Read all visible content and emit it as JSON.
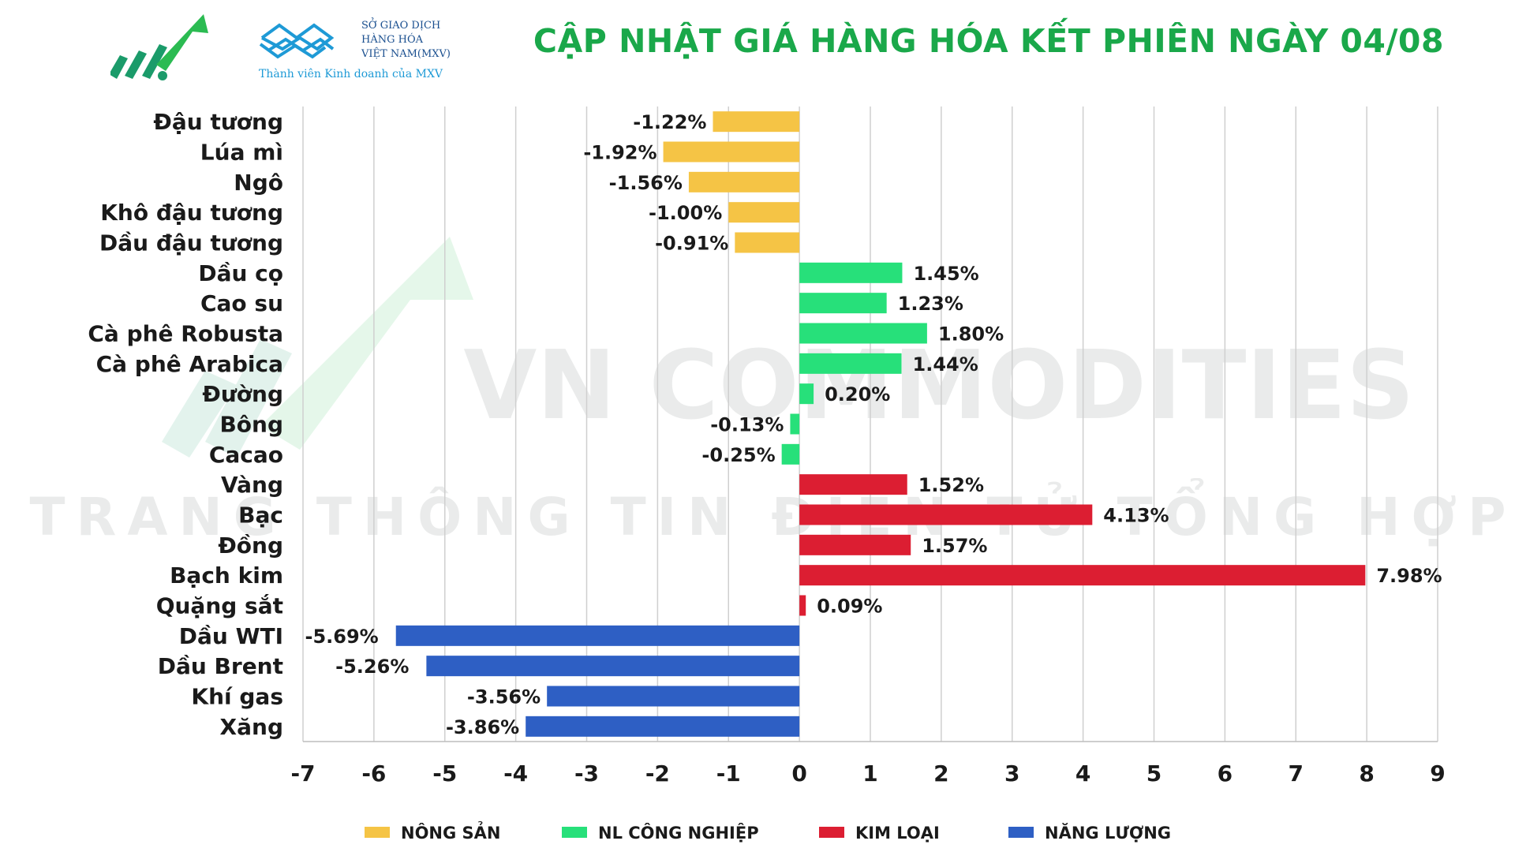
{
  "header": {
    "title": "CẬP NHẬT GIÁ HÀNG HÓA KẾT PHIÊN NGÀY 04/08",
    "brand_lines": [
      "SỞ GIAO DỊCH",
      "HÀNG HÓA",
      "VIỆT NAM(MXV)"
    ],
    "tagline": "Thành viên Kinh doanh của MXV",
    "title_color": "#1aa84a"
  },
  "watermark": {
    "line1": "VN COMMODITIES",
    "line2": "TRANG THÔNG TIN ĐIỆN TỬ TỔNG HỢP"
  },
  "chart_data": {
    "type": "bar",
    "orientation": "horizontal",
    "categories": [
      "Đậu tương",
      "Lúa mì",
      "Ngô",
      "Khô đậu tương",
      "Dầu đậu tương",
      "Dầu cọ",
      "Cao su",
      "Cà phê Robusta",
      "Cà phê Arabica",
      "Đường",
      "Bông",
      "Cacao",
      "Vàng",
      "Bạc",
      "Đồng",
      "Bạch kim",
      "Quặng sắt",
      "Dầu WTI",
      "Dầu Brent",
      "Khí gas",
      "Xăng"
    ],
    "values": [
      -1.22,
      -1.92,
      -1.56,
      -1.0,
      -0.91,
      1.45,
      1.23,
      1.8,
      1.44,
      0.2,
      -0.13,
      -0.25,
      1.52,
      4.13,
      1.57,
      7.98,
      0.09,
      -5.69,
      -5.26,
      -3.56,
      -3.86
    ],
    "value_labels": [
      "-1.22%",
      "-1.92%",
      "-1.56%",
      "-1.00%",
      "-0.91%",
      "1.45%",
      "1.23%",
      "1.80%",
      "1.44%",
      "0.20%",
      "-0.13%",
      "-0.25%",
      "1.52%",
      "4.13%",
      "1.57%",
      "7.98%",
      "0.09%",
      "-5.69%",
      "-5.26%",
      "-3.56%",
      "-3.86%"
    ],
    "groups": [
      0,
      0,
      0,
      0,
      0,
      1,
      1,
      1,
      1,
      1,
      1,
      1,
      2,
      2,
      2,
      2,
      2,
      3,
      3,
      3,
      3
    ],
    "legend": [
      {
        "name": "NÔNG SẢN",
        "color": "#f5c445"
      },
      {
        "name": "NL CÔNG NGHIỆP",
        "color": "#27e07a"
      },
      {
        "name": "KIM LOẠI",
        "color": "#dc1e32"
      },
      {
        "name": "NĂNG LƯỢNG",
        "color": "#2e5fc4"
      }
    ],
    "xlim": [
      -7,
      9
    ],
    "xticks": [
      -7,
      -6,
      -5,
      -4,
      -3,
      -2,
      -1,
      0,
      1,
      2,
      3,
      4,
      5,
      6,
      7,
      8,
      9
    ],
    "grid": true,
    "legend_position": "bottom"
  }
}
